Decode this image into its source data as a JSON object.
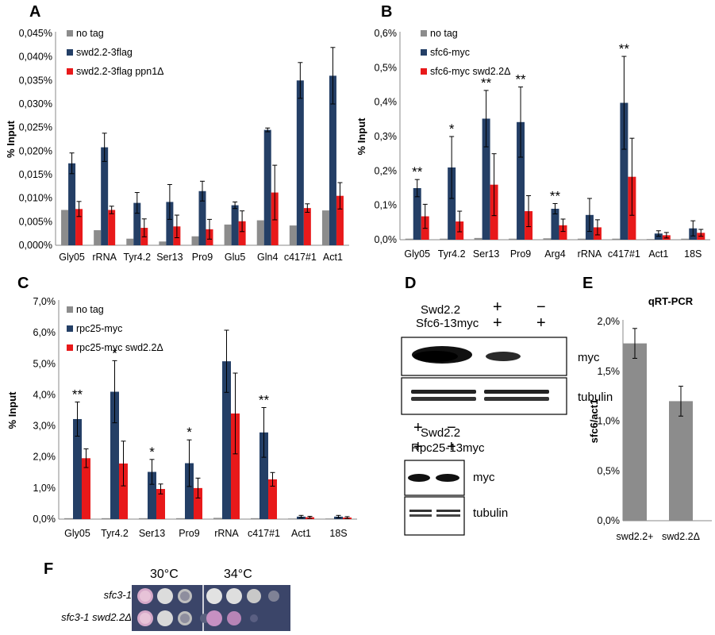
{
  "panels": {
    "A": "A",
    "B": "B",
    "C": "C",
    "D": "D",
    "E": "E",
    "F": "F"
  },
  "chart_data": [
    {
      "id": "A",
      "type": "bar",
      "ylabel": "% Input",
      "ylim": [
        0,
        0.045
      ],
      "yticks": [
        "0,000%",
        "0,005%",
        "0,010%",
        "0,015%",
        "0,020%",
        "0,025%",
        "0,030%",
        "0,035%",
        "0,040%",
        "0,045%"
      ],
      "categories": [
        "Gly05",
        "rRNA",
        "Tyr4.2",
        "Ser13",
        "Pro9",
        "Glu5",
        "Gln4",
        "c417#1",
        "Act1"
      ],
      "series": [
        {
          "name": "no tag",
          "color": "#8c8c8c",
          "values": [
            0.0075,
            0.0032,
            0.0014,
            0.0008,
            0.0019,
            0.0044,
            0.0053,
            0.0042,
            0.0074
          ],
          "errors": [
            0,
            0,
            0,
            0,
            0,
            0,
            0,
            0,
            0
          ]
        },
        {
          "name": "swd2.2-3flag",
          "color": "#243f66",
          "values": [
            0.0174,
            0.0208,
            0.009,
            0.0092,
            0.0115,
            0.0085,
            0.0245,
            0.035,
            0.036
          ],
          "errors": [
            0.0022,
            0.003,
            0.0022,
            0.0037,
            0.0021,
            0.0007,
            0.0004,
            0.0038,
            0.006
          ]
        },
        {
          "name": "swd2.2-3flag ppn1Δ",
          "color": "#e8191a",
          "values": [
            0.0077,
            0.0075,
            0.0037,
            0.004,
            0.0034,
            0.0051,
            0.0112,
            0.0079,
            0.0105
          ],
          "errors": [
            0.0016,
            0.0008,
            0.0019,
            0.0024,
            0.0021,
            0.0022,
            0.0058,
            0.0009,
            0.0028
          ]
        }
      ],
      "significance": [
        "",
        "",
        "",
        "",
        "",
        "",
        "",
        "",
        ""
      ]
    },
    {
      "id": "B",
      "type": "bar",
      "ylabel": "% Input",
      "ylim": [
        0,
        0.6
      ],
      "yticks": [
        "0,0%",
        "0,1%",
        "0,2%",
        "0,3%",
        "0,4%",
        "0,5%",
        "0,6%"
      ],
      "categories": [
        "Gly05",
        "Tyr4.2",
        "Ser13",
        "Pro9",
        "Arg4",
        "rRNA",
        "c417#1",
        "Act1",
        "18S"
      ],
      "series": [
        {
          "name": "no tag",
          "color": "#8c8c8c",
          "values": [
            0.003,
            0.003,
            0.005,
            0.003,
            0.004,
            0.003,
            0.003,
            0.002,
            0.003
          ],
          "errors": [
            0,
            0,
            0,
            0,
            0,
            0,
            0,
            0,
            0
          ]
        },
        {
          "name": "sfc6-myc",
          "color": "#243f66",
          "values": [
            0.15,
            0.21,
            0.352,
            0.342,
            0.09,
            0.072,
            0.398,
            0.018,
            0.033
          ],
          "errors": [
            0.025,
            0.09,
            0.082,
            0.102,
            0.015,
            0.048,
            0.135,
            0.008,
            0.022
          ]
        },
        {
          "name": "sfc6-myc swd2.2Δ",
          "color": "#e8191a",
          "values": [
            0.068,
            0.053,
            0.16,
            0.083,
            0.042,
            0.036,
            0.183,
            0.013,
            0.02
          ],
          "errors": [
            0.035,
            0.03,
            0.09,
            0.045,
            0.018,
            0.022,
            0.112,
            0.008,
            0.01
          ]
        }
      ],
      "significance": [
        "**",
        "*",
        "**",
        "**",
        "**",
        "",
        "**",
        "",
        ""
      ]
    },
    {
      "id": "C",
      "type": "bar",
      "ylabel": "% Input",
      "ylim": [
        0,
        0.07
      ],
      "yticks": [
        "0,0%",
        "1,0%",
        "2,0%",
        "3,0%",
        "4,0%",
        "5,0%",
        "6,0%",
        "7,0%"
      ],
      "categories": [
        "Gly05",
        "Tyr4.2",
        "Ser13",
        "Pro9",
        "rRNA",
        "c417#1",
        "Act1",
        "18S"
      ],
      "series": [
        {
          "name": "no tag",
          "color": "#8c8c8c",
          "values": [
            0.0003,
            0.0003,
            0.0003,
            0.0003,
            0.0004,
            0.0003,
            0.0002,
            0.0002
          ],
          "errors": [
            0,
            0,
            0,
            0,
            0,
            0,
            0,
            0
          ]
        },
        {
          "name": "rpc25-myc",
          "color": "#243f66",
          "values": [
            0.0322,
            0.041,
            0.0152,
            0.018,
            0.0508,
            0.0279,
            0.0008,
            0.0008
          ],
          "errors": [
            0.0055,
            0.01,
            0.004,
            0.0075,
            0.01,
            0.008,
            0.0004,
            0.0004
          ]
        },
        {
          "name": "rpc25-myc swd2.2Δ",
          "color": "#e8191a",
          "values": [
            0.0196,
            0.0179,
            0.0097,
            0.01,
            0.034,
            0.0128,
            0.0006,
            0.0005
          ],
          "errors": [
            0.003,
            0.0072,
            0.0016,
            0.0032,
            0.013,
            0.0022,
            0.0003,
            0.0003
          ]
        }
      ],
      "significance": [
        "**",
        "*",
        "*",
        "*",
        "",
        "**",
        "",
        ""
      ]
    },
    {
      "id": "E",
      "type": "bar",
      "title": "qRT-PCR",
      "ylabel": "sfc6/act1",
      "ylim": [
        0,
        0.02
      ],
      "yticks": [
        "0,0%",
        "0,5%",
        "1,0%",
        "1,5%",
        "2,0%"
      ],
      "categories": [
        "swd2.2+",
        "swd2.2Δ"
      ],
      "series": [
        {
          "color": "#8c8c8c",
          "values": [
            0.0178,
            0.012
          ],
          "errors": [
            0.0015,
            0.0015
          ]
        }
      ]
    }
  ],
  "blots": {
    "top": {
      "row1_label": "Swd2.2",
      "row1_signs": [
        "+",
        "−"
      ],
      "row2_label": "Sfc6-13myc",
      "row2_signs": [
        "+",
        "+"
      ],
      "band1": "myc",
      "band2": "tubulin"
    },
    "bottom": {
      "row1_label": "Swd2.2",
      "row1_signs": [
        "+",
        "−"
      ],
      "row2_label": "Rpc25-13myc",
      "row2_signs": [
        "+",
        "+"
      ],
      "band1": "myc",
      "band2": "tubulin"
    }
  },
  "spot_assay": {
    "temps": [
      "30°C",
      "34°C"
    ],
    "strains": [
      "sfc3-1",
      "sfc3-1 swd2.2Δ"
    ]
  }
}
